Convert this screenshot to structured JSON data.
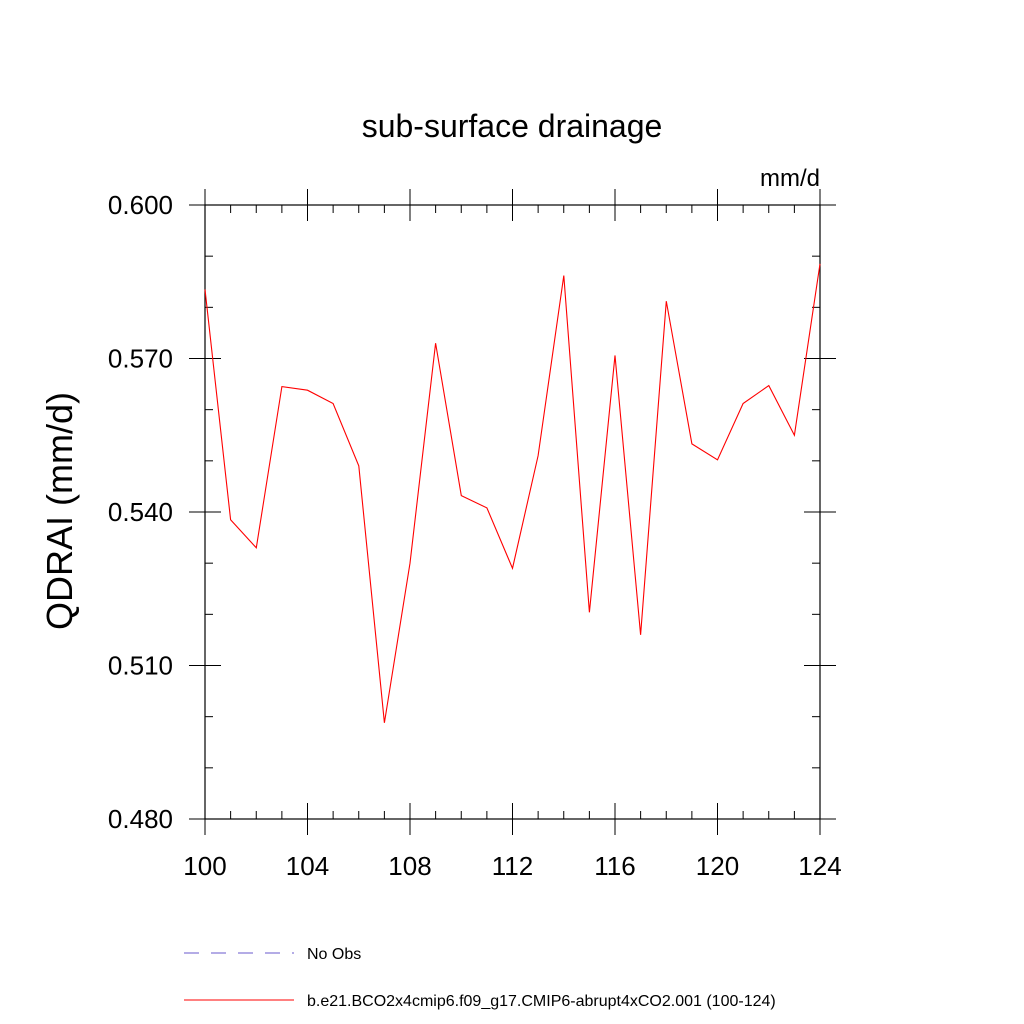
{
  "chart_data": {
    "type": "line",
    "title": "sub-surface drainage",
    "units": "mm/d",
    "xlabel": "",
    "ylabel": "QDRAI  (mm/d)",
    "xlim": [
      100,
      124
    ],
    "ylim": [
      0.48,
      0.6
    ],
    "x_ticks": [
      100,
      104,
      108,
      112,
      116,
      120,
      124
    ],
    "x_tick_labels": [
      "100",
      "104",
      "108",
      "112",
      "116",
      "120",
      "124"
    ],
    "y_ticks": [
      0.48,
      0.51,
      0.54,
      0.57,
      0.6
    ],
    "y_tick_labels": [
      "0.480",
      "0.510",
      "0.540",
      "0.570",
      "0.600"
    ],
    "x_minor_step": 1,
    "y_minor_step": 0.01,
    "grid": false,
    "legend_position": "bottom-left",
    "series": [
      {
        "name": "b.e21.BCO2x4cmip6.f09_g17.CMIP6-abrupt4xCO2.001 (100-124)",
        "color": "#ff0000",
        "style": "solid",
        "x": [
          100,
          101,
          102,
          103,
          104,
          105,
          106,
          107,
          108,
          109,
          110,
          111,
          112,
          113,
          114,
          115,
          116,
          117,
          118,
          119,
          120,
          121,
          122,
          123,
          124
        ],
        "values": [
          0.5835,
          0.5385,
          0.533,
          0.5645,
          0.5638,
          0.5612,
          0.549,
          0.4988,
          0.53,
          0.573,
          0.5432,
          0.5408,
          0.529,
          0.551,
          0.5862,
          0.5204,
          0.5706,
          0.516,
          0.5812,
          0.5533,
          0.5502,
          0.5612,
          0.5647,
          0.555,
          0.5885
        ]
      }
    ],
    "legend": [
      {
        "label": "No Obs",
        "color": "#6a5acd",
        "style": "dashed"
      },
      {
        "label": "b.e21.BCO2x4cmip6.f09_g17.CMIP6-abrupt4xCO2.001 (100-124)",
        "color": "#ff0000",
        "style": "solid"
      }
    ]
  }
}
